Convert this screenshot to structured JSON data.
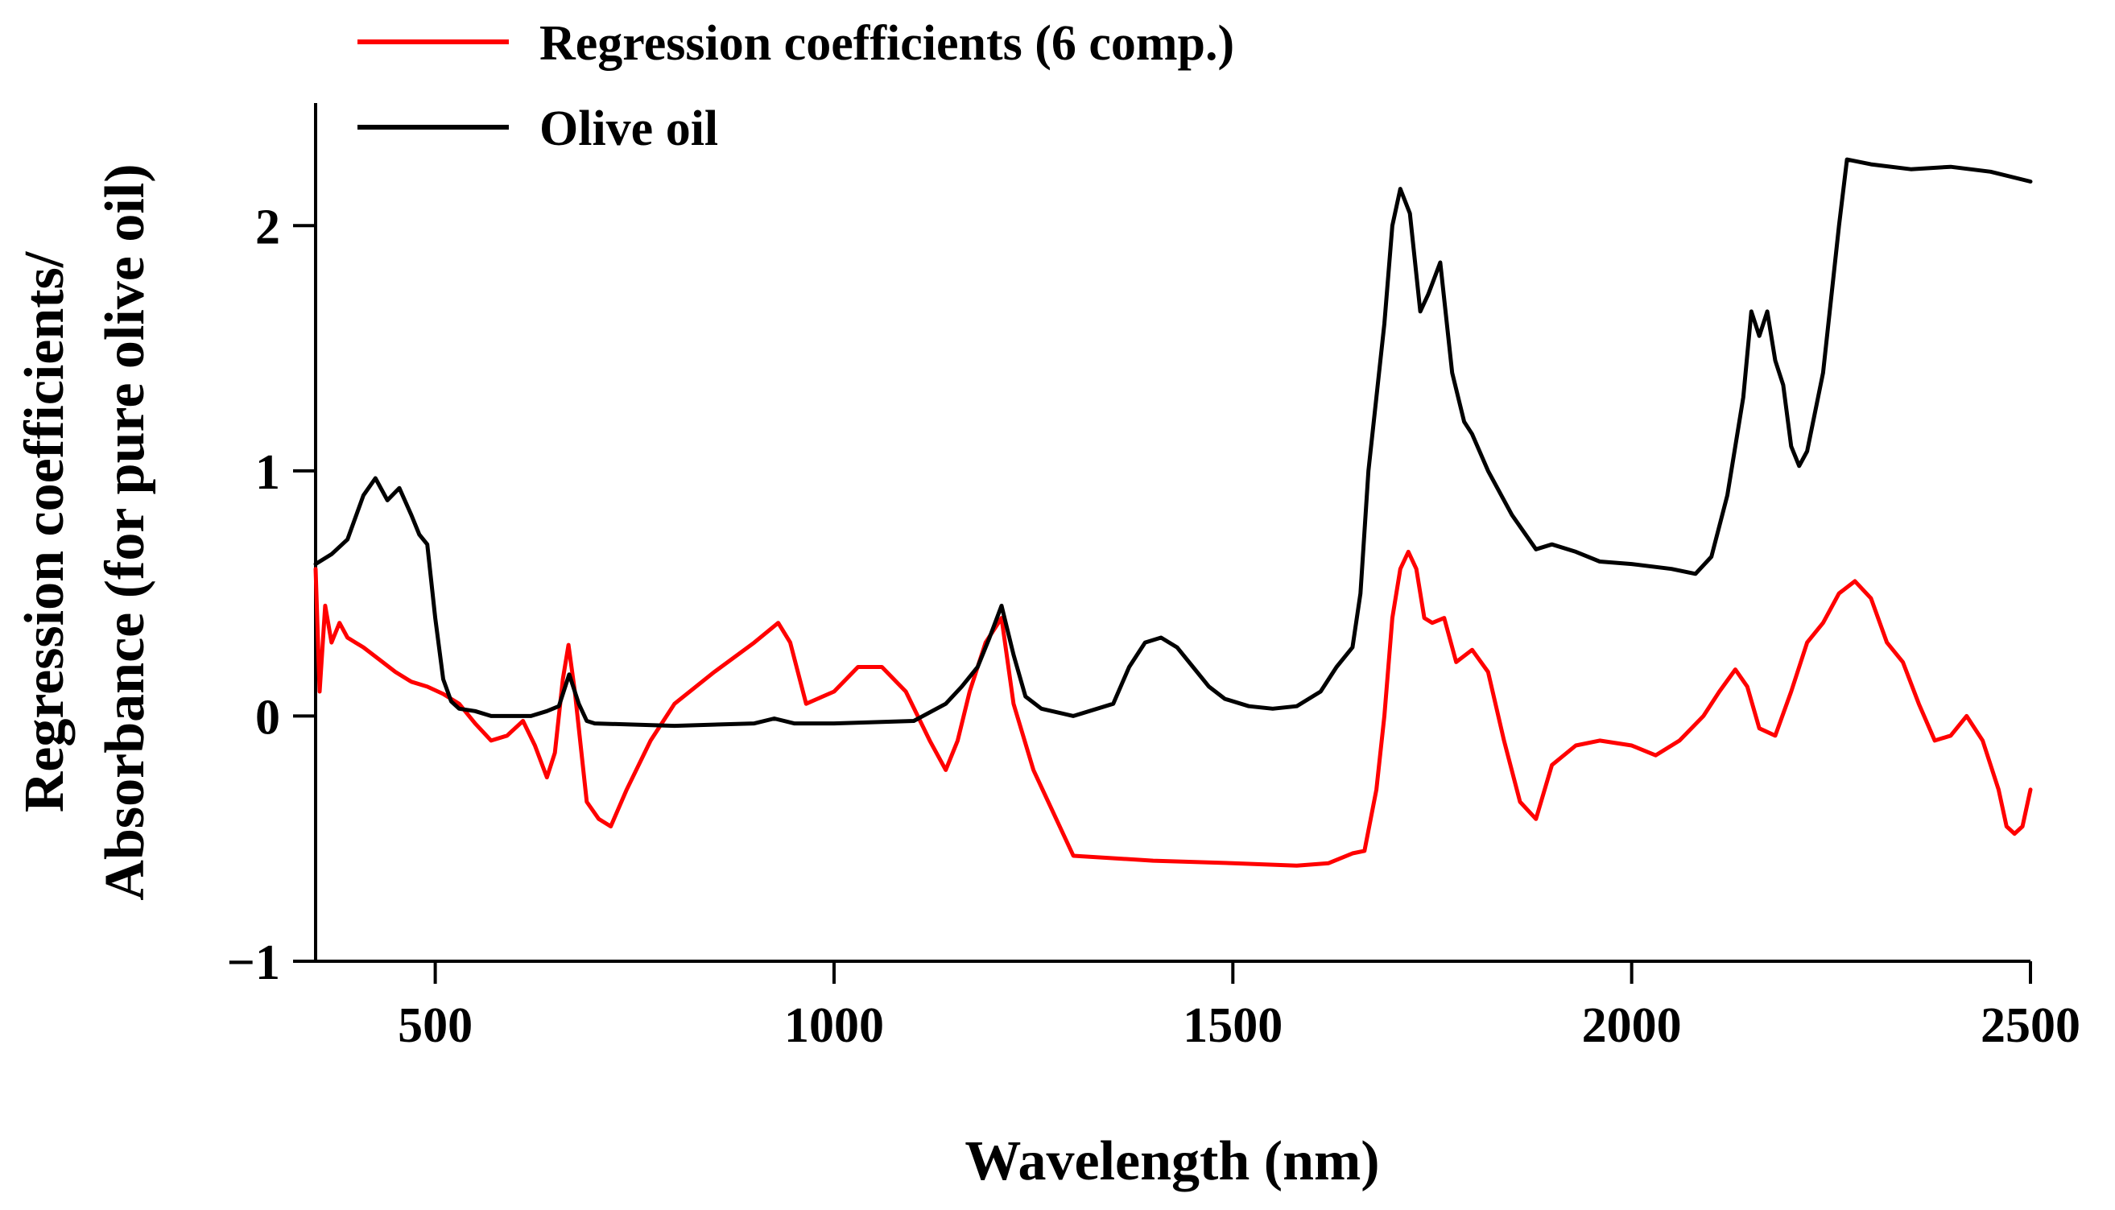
{
  "chart_data": {
    "type": "line",
    "title": "",
    "xlabel": "Wavelength (nm)",
    "ylabel_line1": "Regression coefficients/",
    "ylabel_line2": "Absorbance (for pure olive oil)",
    "xlim": [
      350,
      2500
    ],
    "ylim": [
      -1,
      2.5
    ],
    "xticks": [
      500,
      1000,
      1500,
      2000,
      2500
    ],
    "xtick_labels": [
      "500",
      "1000",
      "1500",
      "2000",
      "2500"
    ],
    "yticks": [
      -1,
      0,
      1,
      2
    ],
    "ytick_labels": [
      "−1",
      "0",
      "1",
      "2"
    ],
    "grid": false,
    "legend_position": "top-left",
    "colors": {
      "regression": "#ff0000",
      "olive": "#000000",
      "axis": "#000000"
    },
    "series": [
      {
        "name": "Regression coefficients (6 comp.)",
        "color": "#ff0000",
        "x": [
          350,
          355,
          362,
          370,
          380,
          390,
          400,
          410,
          430,
          450,
          470,
          490,
          510,
          530,
          550,
          570,
          590,
          610,
          625,
          640,
          650,
          660,
          667,
          675,
          690,
          705,
          720,
          740,
          770,
          800,
          850,
          900,
          930,
          945,
          965,
          1000,
          1030,
          1060,
          1090,
          1120,
          1140,
          1155,
          1170,
          1190,
          1210,
          1225,
          1250,
          1300,
          1400,
          1500,
          1580,
          1620,
          1650,
          1665,
          1680,
          1690,
          1700,
          1710,
          1720,
          1730,
          1740,
          1750,
          1765,
          1780,
          1800,
          1820,
          1840,
          1860,
          1880,
          1900,
          1930,
          1960,
          2000,
          2030,
          2060,
          2090,
          2110,
          2130,
          2145,
          2160,
          2180,
          2200,
          2220,
          2240,
          2260,
          2280,
          2300,
          2320,
          2340,
          2360,
          2380,
          2400,
          2420,
          2440,
          2460,
          2470,
          2480,
          2490,
          2500
        ],
        "values": [
          0.6,
          0.1,
          0.45,
          0.3,
          0.38,
          0.32,
          0.3,
          0.28,
          0.23,
          0.18,
          0.14,
          0.12,
          0.09,
          0.05,
          -0.03,
          -0.1,
          -0.08,
          -0.02,
          -0.12,
          -0.25,
          -0.15,
          0.15,
          0.29,
          0.1,
          -0.35,
          -0.42,
          -0.45,
          -0.3,
          -0.1,
          0.05,
          0.18,
          0.3,
          0.38,
          0.3,
          0.05,
          0.1,
          0.2,
          0.2,
          0.1,
          -0.1,
          -0.22,
          -0.1,
          0.1,
          0.3,
          0.4,
          0.05,
          -0.22,
          -0.57,
          -0.59,
          -0.6,
          -0.61,
          -0.6,
          -0.56,
          -0.55,
          -0.3,
          0.0,
          0.4,
          0.6,
          0.67,
          0.6,
          0.4,
          0.38,
          0.4,
          0.22,
          0.27,
          0.18,
          -0.1,
          -0.35,
          -0.42,
          -0.2,
          -0.12,
          -0.1,
          -0.12,
          -0.16,
          -0.1,
          0.0,
          0.1,
          0.19,
          0.12,
          -0.05,
          -0.08,
          0.1,
          0.3,
          0.38,
          0.5,
          0.55,
          0.48,
          0.3,
          0.22,
          0.05,
          -0.1,
          -0.08,
          0.0,
          -0.1,
          -0.3,
          -0.45,
          -0.48,
          -0.45,
          -0.3
        ]
      },
      {
        "name": "Olive oil",
        "color": "#000000",
        "x": [
          350,
          370,
          390,
          410,
          425,
          440,
          455,
          470,
          480,
          490,
          500,
          510,
          520,
          530,
          550,
          570,
          600,
          620,
          640,
          655,
          668,
          680,
          690,
          700,
          800,
          900,
          925,
          950,
          1000,
          1100,
          1140,
          1160,
          1180,
          1195,
          1210,
          1225,
          1240,
          1260,
          1300,
          1350,
          1370,
          1390,
          1410,
          1430,
          1450,
          1470,
          1490,
          1520,
          1550,
          1580,
          1610,
          1630,
          1650,
          1660,
          1670,
          1680,
          1690,
          1700,
          1710,
          1722,
          1735,
          1745,
          1760,
          1775,
          1790,
          1800,
          1820,
          1850,
          1880,
          1900,
          1930,
          1960,
          2000,
          2050,
          2080,
          2100,
          2120,
          2140,
          2150,
          2160,
          2170,
          2180,
          2190,
          2200,
          2210,
          2220,
          2240,
          2260,
          2270,
          2300,
          2350,
          2400,
          2450,
          2500
        ],
        "values": [
          0.62,
          0.66,
          0.72,
          0.9,
          0.97,
          0.88,
          0.93,
          0.82,
          0.74,
          0.7,
          0.4,
          0.15,
          0.06,
          0.03,
          0.02,
          0.0,
          0.0,
          0.0,
          0.02,
          0.04,
          0.17,
          0.05,
          -0.02,
          -0.03,
          -0.04,
          -0.03,
          -0.01,
          -0.03,
          -0.03,
          -0.02,
          0.05,
          0.12,
          0.2,
          0.32,
          0.45,
          0.25,
          0.08,
          0.03,
          0.0,
          0.05,
          0.2,
          0.3,
          0.32,
          0.28,
          0.2,
          0.12,
          0.07,
          0.04,
          0.03,
          0.04,
          0.1,
          0.2,
          0.28,
          0.5,
          1.0,
          1.3,
          1.6,
          2.0,
          2.15,
          2.05,
          1.65,
          1.72,
          1.85,
          1.4,
          1.2,
          1.15,
          1.0,
          0.82,
          0.68,
          0.7,
          0.67,
          0.63,
          0.62,
          0.6,
          0.58,
          0.65,
          0.9,
          1.3,
          1.65,
          1.55,
          1.65,
          1.45,
          1.35,
          1.1,
          1.02,
          1.08,
          1.4,
          2.0,
          2.27,
          2.25,
          2.23,
          2.24,
          2.22,
          2.18
        ]
      }
    ]
  }
}
